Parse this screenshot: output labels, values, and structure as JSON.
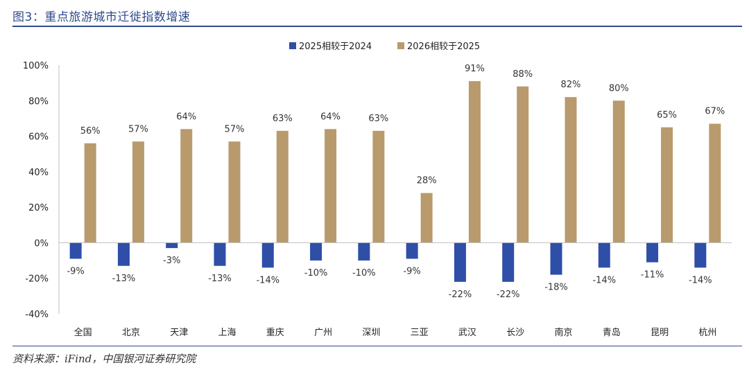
{
  "header": {
    "title": "图3：重点旅游城市迁徙指数增速"
  },
  "footer": {
    "source": "资料来源：iFind，中国银河证券研究院"
  },
  "colors": {
    "series1": "#2e4ea8",
    "series2": "#b89a6c",
    "axis": "#bfbfbf",
    "rule": "#2e4a8c"
  },
  "chart_data": {
    "type": "bar",
    "title": "重点旅游城市迁徙指数增速",
    "xlabel": "",
    "ylabel": "",
    "ylim": [
      -40,
      100
    ],
    "yticks": [
      100,
      80,
      60,
      40,
      20,
      0,
      -20,
      -40
    ],
    "ytick_labels": [
      "100%",
      "80%",
      "60%",
      "40%",
      "20%",
      "0%",
      "-20%",
      "-40%"
    ],
    "legend_position": "top-center",
    "categories": [
      "全国",
      "北京",
      "天津",
      "上海",
      "重庆",
      "广州",
      "深圳",
      "三亚",
      "武汉",
      "长沙",
      "南京",
      "青岛",
      "昆明",
      "杭州"
    ],
    "series": [
      {
        "name": "2025相较于2024",
        "values": [
          -9,
          -13,
          -3,
          -13,
          -14,
          -10,
          -10,
          -9,
          -22,
          -22,
          -18,
          -14,
          -11,
          -14
        ],
        "labels": [
          "-9%",
          "-13%",
          "-3%",
          "-13%",
          "-14%",
          "-10%",
          "-10%",
          "-9%",
          "-22%",
          "-22%",
          "-18%",
          "-14%",
          "-11%",
          "-14%"
        ]
      },
      {
        "name": "2026相较于2025",
        "values": [
          56,
          57,
          64,
          57,
          63,
          64,
          63,
          28,
          91,
          88,
          82,
          80,
          65,
          67
        ],
        "labels": [
          "56%",
          "57%",
          "64%",
          "57%",
          "63%",
          "64%",
          "63%",
          "28%",
          "91%",
          "88%",
          "82%",
          "80%",
          "65%",
          "67%"
        ]
      }
    ]
  }
}
